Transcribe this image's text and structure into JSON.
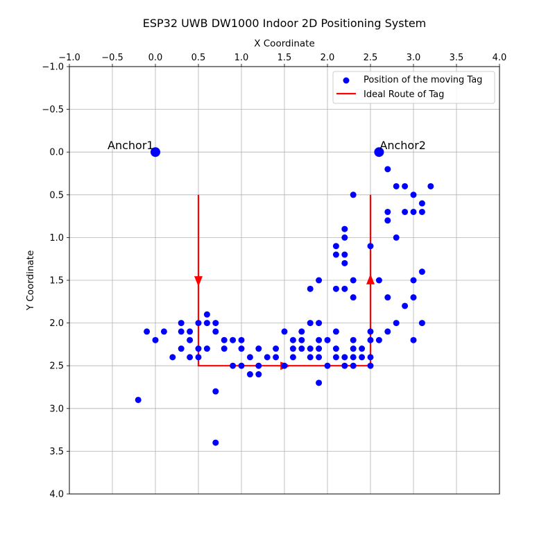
{
  "chart_data": {
    "type": "scatter",
    "title": "ESP32 UWB DW1000 Indoor 2D Positioning System",
    "xlabel": "X Coordinate",
    "ylabel": "Y Coordinate",
    "xlim": [
      -1.0,
      4.0
    ],
    "ylim": [
      4.0,
      -1.0
    ],
    "y_inverted": true,
    "x_axis_position": "top",
    "grid": true,
    "legend_position": "top-right",
    "x_ticks": [
      -1.0,
      -0.5,
      0.0,
      0.5,
      1.0,
      1.5,
      2.0,
      2.5,
      3.0,
      3.5,
      4.0
    ],
    "x_tick_labels": [
      "−1.0",
      "−0.5",
      "0.0",
      "0.5",
      "1.0",
      "1.5",
      "2.0",
      "2.5",
      "3.0",
      "3.5",
      "4.0"
    ],
    "y_ticks": [
      -1.0,
      -0.5,
      0.0,
      0.5,
      1.0,
      1.5,
      2.0,
      2.5,
      3.0,
      3.5,
      4.0
    ],
    "y_tick_labels": [
      "−1.0",
      "−0.5",
      "0.0",
      "0.5",
      "1.0",
      "1.5",
      "2.0",
      "2.5",
      "3.0",
      "3.5",
      "4.0"
    ],
    "anchors": [
      {
        "label": "Anchor1",
        "x": 0.0,
        "y": 0.0
      },
      {
        "label": "Anchor2",
        "x": 2.6,
        "y": 0.0
      }
    ],
    "series": [
      {
        "name": "Position of the moving Tag",
        "type": "scatter",
        "color": "#0000ff",
        "points": [
          [
            -0.2,
            2.9
          ],
          [
            -0.1,
            2.1
          ],
          [
            0.0,
            2.2
          ],
          [
            0.1,
            2.1
          ],
          [
            0.2,
            2.4
          ],
          [
            0.3,
            2.0
          ],
          [
            0.3,
            2.1
          ],
          [
            0.3,
            2.3
          ],
          [
            0.4,
            2.1
          ],
          [
            0.4,
            2.2
          ],
          [
            0.4,
            2.4
          ],
          [
            0.5,
            2.0
          ],
          [
            0.5,
            2.3
          ],
          [
            0.5,
            2.4
          ],
          [
            0.6,
            1.9
          ],
          [
            0.6,
            2.0
          ],
          [
            0.6,
            2.3
          ],
          [
            0.7,
            2.0
          ],
          [
            0.7,
            2.1
          ],
          [
            0.7,
            2.8
          ],
          [
            0.7,
            3.4
          ],
          [
            0.8,
            2.2
          ],
          [
            0.8,
            2.3
          ],
          [
            0.9,
            2.2
          ],
          [
            0.9,
            2.5
          ],
          [
            1.0,
            2.2
          ],
          [
            1.0,
            2.3
          ],
          [
            1.0,
            2.5
          ],
          [
            1.1,
            2.4
          ],
          [
            1.1,
            2.6
          ],
          [
            1.2,
            2.3
          ],
          [
            1.2,
            2.5
          ],
          [
            1.2,
            2.6
          ],
          [
            1.3,
            2.4
          ],
          [
            1.4,
            2.3
          ],
          [
            1.4,
            2.4
          ],
          [
            1.5,
            2.1
          ],
          [
            1.5,
            2.5
          ],
          [
            1.6,
            2.2
          ],
          [
            1.6,
            2.3
          ],
          [
            1.6,
            2.4
          ],
          [
            1.7,
            2.1
          ],
          [
            1.7,
            2.2
          ],
          [
            1.7,
            2.3
          ],
          [
            1.8,
            1.6
          ],
          [
            1.8,
            2.0
          ],
          [
            1.8,
            2.3
          ],
          [
            1.8,
            2.4
          ],
          [
            1.9,
            1.5
          ],
          [
            1.9,
            2.0
          ],
          [
            1.9,
            2.2
          ],
          [
            1.9,
            2.3
          ],
          [
            1.9,
            2.4
          ],
          [
            1.9,
            2.7
          ],
          [
            2.0,
            2.2
          ],
          [
            2.0,
            2.5
          ],
          [
            2.1,
            1.1
          ],
          [
            2.1,
            1.2
          ],
          [
            2.1,
            1.6
          ],
          [
            2.1,
            2.1
          ],
          [
            2.1,
            2.3
          ],
          [
            2.1,
            2.4
          ],
          [
            2.2,
            0.9
          ],
          [
            2.2,
            1.0
          ],
          [
            2.2,
            1.2
          ],
          [
            2.2,
            1.3
          ],
          [
            2.2,
            1.6
          ],
          [
            2.2,
            2.4
          ],
          [
            2.2,
            2.5
          ],
          [
            2.3,
            0.5
          ],
          [
            2.3,
            1.5
          ],
          [
            2.3,
            1.7
          ],
          [
            2.3,
            2.2
          ],
          [
            2.3,
            2.3
          ],
          [
            2.3,
            2.4
          ],
          [
            2.3,
            2.5
          ],
          [
            2.4,
            2.3
          ],
          [
            2.4,
            2.4
          ],
          [
            2.5,
            1.1
          ],
          [
            2.5,
            2.1
          ],
          [
            2.5,
            2.2
          ],
          [
            2.5,
            2.4
          ],
          [
            2.5,
            2.5
          ],
          [
            2.6,
            1.5
          ],
          [
            2.6,
            2.2
          ],
          [
            2.7,
            0.2
          ],
          [
            2.7,
            0.7
          ],
          [
            2.7,
            0.8
          ],
          [
            2.7,
            1.7
          ],
          [
            2.7,
            2.1
          ],
          [
            2.8,
            0.4
          ],
          [
            2.8,
            1.0
          ],
          [
            2.8,
            2.0
          ],
          [
            2.9,
            0.4
          ],
          [
            2.9,
            0.7
          ],
          [
            2.9,
            1.8
          ],
          [
            3.0,
            0.5
          ],
          [
            3.0,
            0.7
          ],
          [
            3.0,
            1.5
          ],
          [
            3.0,
            1.7
          ],
          [
            3.0,
            2.2
          ],
          [
            3.1,
            0.6
          ],
          [
            3.1,
            0.7
          ],
          [
            3.1,
            1.4
          ],
          [
            3.1,
            2.0
          ],
          [
            3.2,
            0.4
          ]
        ]
      },
      {
        "name": "Ideal Route of Tag",
        "type": "line",
        "color": "#ff0000",
        "points": [
          [
            0.5,
            0.5
          ],
          [
            0.5,
            2.5
          ],
          [
            2.5,
            2.5
          ],
          [
            2.5,
            0.5
          ]
        ],
        "arrows": [
          {
            "x": 0.5,
            "y": 1.55,
            "direction": "down"
          },
          {
            "x": 1.55,
            "y": 2.5,
            "direction": "right"
          },
          {
            "x": 2.5,
            "y": 1.45,
            "direction": "up"
          }
        ]
      }
    ]
  }
}
